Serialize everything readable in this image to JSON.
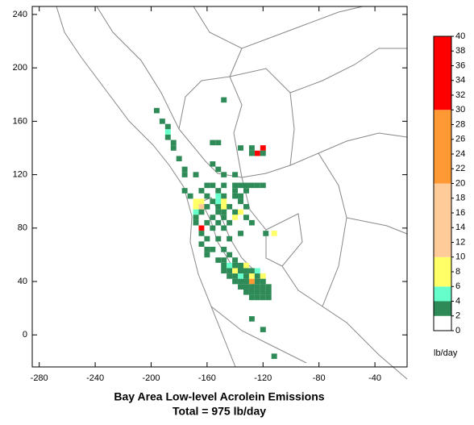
{
  "chart_data": {
    "type": "gridmap",
    "title": "Bay Area Low-level Acrolein Emissions",
    "subtitle": "Total = 975 lb/day",
    "xlim": [
      -285,
      -17
    ],
    "ylim": [
      -24,
      246
    ],
    "xticks": [
      -280,
      -240,
      -200,
      -160,
      -120,
      -80,
      -40
    ],
    "yticks": [
      0,
      40,
      80,
      120,
      160,
      200,
      240
    ],
    "colorbar": {
      "label": "lb/day",
      "ticks": [
        0,
        2,
        4,
        6,
        8,
        10,
        12,
        14,
        16,
        18,
        20,
        22,
        24,
        26,
        28,
        30,
        32,
        34,
        36,
        38,
        40
      ],
      "bins": [
        0,
        2,
        4,
        6,
        10,
        20,
        30,
        40
      ],
      "colors": [
        "#ffffff",
        "#2e8b57",
        "#66ffcc",
        "#ffff66",
        "#ffcc99",
        "#ff9933",
        "#ff0000"
      ]
    },
    "cells": [
      [
        -196,
        168,
        3
      ],
      [
        -192,
        160,
        3
      ],
      [
        -188,
        156,
        3
      ],
      [
        -188,
        152,
        5
      ],
      [
        -188,
        148,
        3
      ],
      [
        -184,
        144,
        3
      ],
      [
        -184,
        140,
        3
      ],
      [
        -180,
        132,
        3
      ],
      [
        -176,
        124,
        3
      ],
      [
        -148,
        176,
        3
      ],
      [
        -156,
        144,
        3
      ],
      [
        -152,
        144,
        3
      ],
      [
        -136,
        140,
        3
      ],
      [
        -128,
        140,
        3
      ],
      [
        -124,
        136,
        36
      ],
      [
        -120,
        140,
        34
      ],
      [
        -120,
        136,
        3
      ],
      [
        -128,
        136,
        3
      ],
      [
        -156,
        128,
        3
      ],
      [
        -176,
        120,
        3
      ],
      [
        -168,
        120,
        3
      ],
      [
        -152,
        124,
        3
      ],
      [
        -148,
        120,
        3
      ],
      [
        -140,
        120,
        3
      ],
      [
        -160,
        112,
        3
      ],
      [
        -156,
        112,
        3
      ],
      [
        -148,
        112,
        3
      ],
      [
        -140,
        112,
        3
      ],
      [
        -136,
        112,
        3
      ],
      [
        -132,
        112,
        3
      ],
      [
        -128,
        112,
        3
      ],
      [
        -124,
        112,
        3
      ],
      [
        -120,
        112,
        3
      ],
      [
        -176,
        108,
        3
      ],
      [
        -164,
        108,
        3
      ],
      [
        -152,
        108,
        3
      ],
      [
        -140,
        108,
        3
      ],
      [
        -132,
        108,
        3
      ],
      [
        -172,
        104,
        3
      ],
      [
        -160,
        104,
        3
      ],
      [
        -152,
        104,
        5
      ],
      [
        -148,
        104,
        3
      ],
      [
        -140,
        104,
        3
      ],
      [
        -136,
        104,
        3
      ],
      [
        -168,
        100,
        8
      ],
      [
        -164,
        100,
        7
      ],
      [
        -156,
        100,
        3
      ],
      [
        -152,
        100,
        5
      ],
      [
        -148,
        100,
        8
      ],
      [
        -136,
        100,
        3
      ],
      [
        -168,
        96,
        9
      ],
      [
        -164,
        96,
        12
      ],
      [
        -160,
        96,
        3
      ],
      [
        -152,
        96,
        3
      ],
      [
        -148,
        96,
        7
      ],
      [
        -144,
        96,
        3
      ],
      [
        -132,
        96,
        3
      ],
      [
        -168,
        92,
        5
      ],
      [
        -164,
        92,
        3
      ],
      [
        -152,
        92,
        3
      ],
      [
        -148,
        92,
        3
      ],
      [
        -140,
        92,
        3
      ],
      [
        -136,
        92,
        8
      ],
      [
        -168,
        88,
        3
      ],
      [
        -156,
        88,
        3
      ],
      [
        -148,
        88,
        3
      ],
      [
        -140,
        88,
        7
      ],
      [
        -132,
        88,
        3
      ],
      [
        -168,
        84,
        3
      ],
      [
        -160,
        84,
        3
      ],
      [
        -152,
        84,
        3
      ],
      [
        -144,
        84,
        3
      ],
      [
        -128,
        84,
        3
      ],
      [
        -164,
        80,
        38
      ],
      [
        -156,
        80,
        3
      ],
      [
        -148,
        80,
        3
      ],
      [
        -136,
        76,
        3
      ],
      [
        -118,
        76,
        3
      ],
      [
        -112,
        76,
        7
      ],
      [
        -164,
        76,
        3
      ],
      [
        -160,
        72,
        3
      ],
      [
        -152,
        72,
        3
      ],
      [
        -144,
        72,
        3
      ],
      [
        -164,
        68,
        3
      ],
      [
        -160,
        64,
        3
      ],
      [
        -156,
        64,
        3
      ],
      [
        -148,
        64,
        3
      ],
      [
        -144,
        60,
        3
      ],
      [
        -160,
        60,
        3
      ],
      [
        -152,
        56,
        3
      ],
      [
        -148,
        56,
        3
      ],
      [
        -140,
        56,
        3
      ],
      [
        -148,
        52,
        3
      ],
      [
        -144,
        52,
        5
      ],
      [
        -140,
        52,
        3
      ],
      [
        -136,
        52,
        3
      ],
      [
        -132,
        52,
        7
      ],
      [
        -148,
        48,
        3
      ],
      [
        -144,
        48,
        3
      ],
      [
        -140,
        48,
        8
      ],
      [
        -136,
        48,
        3
      ],
      [
        -132,
        48,
        3
      ],
      [
        -128,
        48,
        3
      ],
      [
        -124,
        48,
        5
      ],
      [
        -144,
        44,
        3
      ],
      [
        -140,
        44,
        3
      ],
      [
        -136,
        44,
        5
      ],
      [
        -132,
        44,
        3
      ],
      [
        -128,
        44,
        8
      ],
      [
        -124,
        44,
        3
      ],
      [
        -120,
        44,
        7
      ],
      [
        -140,
        40,
        3
      ],
      [
        -136,
        40,
        3
      ],
      [
        -132,
        40,
        3
      ],
      [
        -128,
        40,
        24
      ],
      [
        -124,
        40,
        3
      ],
      [
        -120,
        40,
        3
      ],
      [
        -136,
        36,
        3
      ],
      [
        -132,
        36,
        3
      ],
      [
        -128,
        36,
        3
      ],
      [
        -124,
        36,
        3
      ],
      [
        -120,
        36,
        3
      ],
      [
        -116,
        36,
        3
      ],
      [
        -132,
        32,
        3
      ],
      [
        -128,
        32,
        3
      ],
      [
        -124,
        32,
        3
      ],
      [
        -120,
        32,
        3
      ],
      [
        -116,
        32,
        3
      ],
      [
        -128,
        28,
        3
      ],
      [
        -124,
        28,
        3
      ],
      [
        -120,
        28,
        3
      ],
      [
        -116,
        28,
        3
      ],
      [
        -128,
        12,
        3
      ],
      [
        -120,
        4,
        3
      ],
      [
        -112,
        -16,
        3
      ]
    ]
  }
}
